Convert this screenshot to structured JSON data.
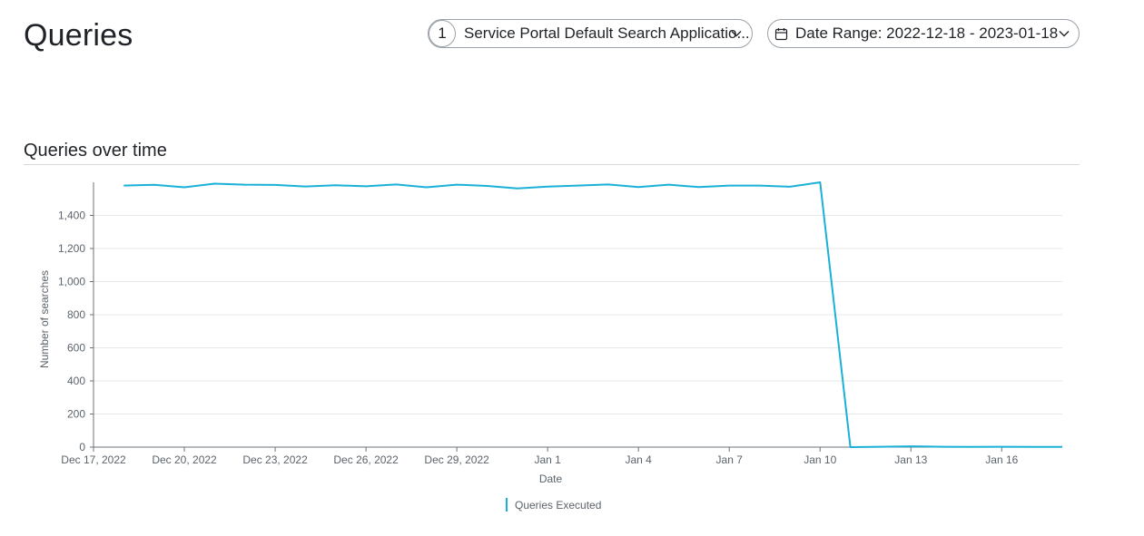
{
  "header": {
    "title": "Queries",
    "app_filter": {
      "count": "1",
      "label": "Service Portal Default Search Applicatio..."
    },
    "date_filter": {
      "label": "Date Range: 2022-12-18 - 2023-01-18"
    }
  },
  "section": {
    "title": "Queries over time"
  },
  "colors": {
    "series": "#1ab0d8",
    "grid": "#e6e8ea",
    "axis": "#6b737a",
    "text": "#5b636b"
  },
  "chart_data": {
    "type": "line",
    "title": "",
    "xlabel": "Date",
    "ylabel": "Number of searches",
    "ylim": [
      0,
      1600
    ],
    "xlim": [
      "2022-12-17",
      "2023-01-18"
    ],
    "yticks": [
      0,
      200,
      400,
      600,
      800,
      1000,
      1200,
      1400
    ],
    "ytick_labels": [
      "0",
      "200",
      "400",
      "600",
      "800",
      "1,000",
      "1,200",
      "1,400"
    ],
    "xticks": [
      "2022-12-17",
      "2022-12-20",
      "2022-12-23",
      "2022-12-26",
      "2022-12-29",
      "2023-01-01",
      "2023-01-04",
      "2023-01-07",
      "2023-01-10",
      "2023-01-13",
      "2023-01-16"
    ],
    "xtick_labels": [
      "Dec 17, 2022",
      "Dec 20, 2022",
      "Dec 23, 2022",
      "Dec 26, 2022",
      "Dec 29, 2022",
      "Jan 1",
      "Jan 4",
      "Jan 7",
      "Jan 10",
      "Jan 13",
      "Jan 16"
    ],
    "grid": true,
    "legend": "bottom-center",
    "series": [
      {
        "name": "Queries Executed",
        "x": [
          "2022-12-18",
          "2022-12-19",
          "2022-12-20",
          "2022-12-21",
          "2022-12-22",
          "2022-12-23",
          "2022-12-24",
          "2022-12-25",
          "2022-12-26",
          "2022-12-27",
          "2022-12-28",
          "2022-12-29",
          "2022-12-30",
          "2022-12-31",
          "2023-01-01",
          "2023-01-02",
          "2023-01-03",
          "2023-01-04",
          "2023-01-05",
          "2023-01-06",
          "2023-01-07",
          "2023-01-08",
          "2023-01-09",
          "2023-01-10",
          "2023-01-11",
          "2023-01-12",
          "2023-01-13",
          "2023-01-14",
          "2023-01-15",
          "2023-01-16",
          "2023-01-17",
          "2023-01-18"
        ],
        "values": [
          1580,
          1585,
          1570,
          1592,
          1586,
          1584,
          1575,
          1582,
          1576,
          1587,
          1570,
          1586,
          1578,
          1563,
          1574,
          1580,
          1587,
          1571,
          1586,
          1571,
          1580,
          1580,
          1573,
          1600,
          0,
          2,
          5,
          2,
          1,
          2,
          1,
          1
        ]
      }
    ]
  }
}
